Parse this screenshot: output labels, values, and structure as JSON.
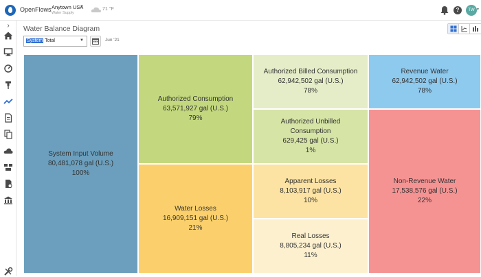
{
  "app": {
    "name": "OpenFlows",
    "location": "Anytown USA",
    "location_sub": "Water Supply",
    "weather": "71 °F",
    "help_label": "?",
    "user_initials": "TW"
  },
  "sidebar": {
    "items": [
      "home-icon",
      "monitor-icon",
      "gauge-icon",
      "pin-icon",
      "trend-icon",
      "report-icon",
      "documents-icon",
      "cloud-icon",
      "network-icon",
      "billing-icon",
      "building-icon",
      "tools-icon"
    ],
    "active_index": 4,
    "expand_glyph": "›"
  },
  "page": {
    "title": "Water Balance Diagram",
    "system_selected": "System",
    "system_rest": " Total",
    "period": "Jun '21"
  },
  "view_toggles": {
    "items": [
      "treemap-view-icon",
      "line-view-icon",
      "bar-view-icon"
    ],
    "active_index": 0
  },
  "colors": {
    "input": "#6b9fbd",
    "authorized": "#c3d87e",
    "losses": "#fbd06c",
    "billed": "#e5edc8",
    "unbilled": "#d6e4a6",
    "apparent": "#fce3a3",
    "real": "#fcf0cf",
    "revenue": "#8ec9ee",
    "non_revenue": "#f59393"
  },
  "water_balance": {
    "unit": "gal (U.S.)",
    "system_input": {
      "label": "System Input Volume",
      "value": "80,481,078 gal (U.S.)",
      "percent": "100%"
    },
    "authorized": {
      "label": "Authorized Consumption",
      "value": "63,571,927 gal (U.S.)",
      "percent": "79%"
    },
    "losses": {
      "label": "Water Losses",
      "value": "16,909,151 gal (U.S.)",
      "percent": "21%"
    },
    "billed": {
      "label": "Authorized Billed Consumption",
      "value": "62,942,502 gal (U.S.)",
      "percent": "78%"
    },
    "unbilled": {
      "label_line1": "Authorized Unbilled",
      "label_line2": "Consumption",
      "value": "629,425 gal (U.S.)",
      "percent": "1%"
    },
    "apparent": {
      "label": "Apparent Losses",
      "value": "8,103,917 gal (U.S.)",
      "percent": "10%"
    },
    "real": {
      "label": "Real Losses",
      "value": "8,805,234 gal (U.S.)",
      "percent": "11%"
    },
    "revenue": {
      "label": "Revenue Water",
      "value": "62,942,502 gal (U.S.)",
      "percent": "78%"
    },
    "non_revenue": {
      "label": "Non-Revenue Water",
      "value": "17,538,576 gal (U.S.)",
      "percent": "22%"
    }
  }
}
